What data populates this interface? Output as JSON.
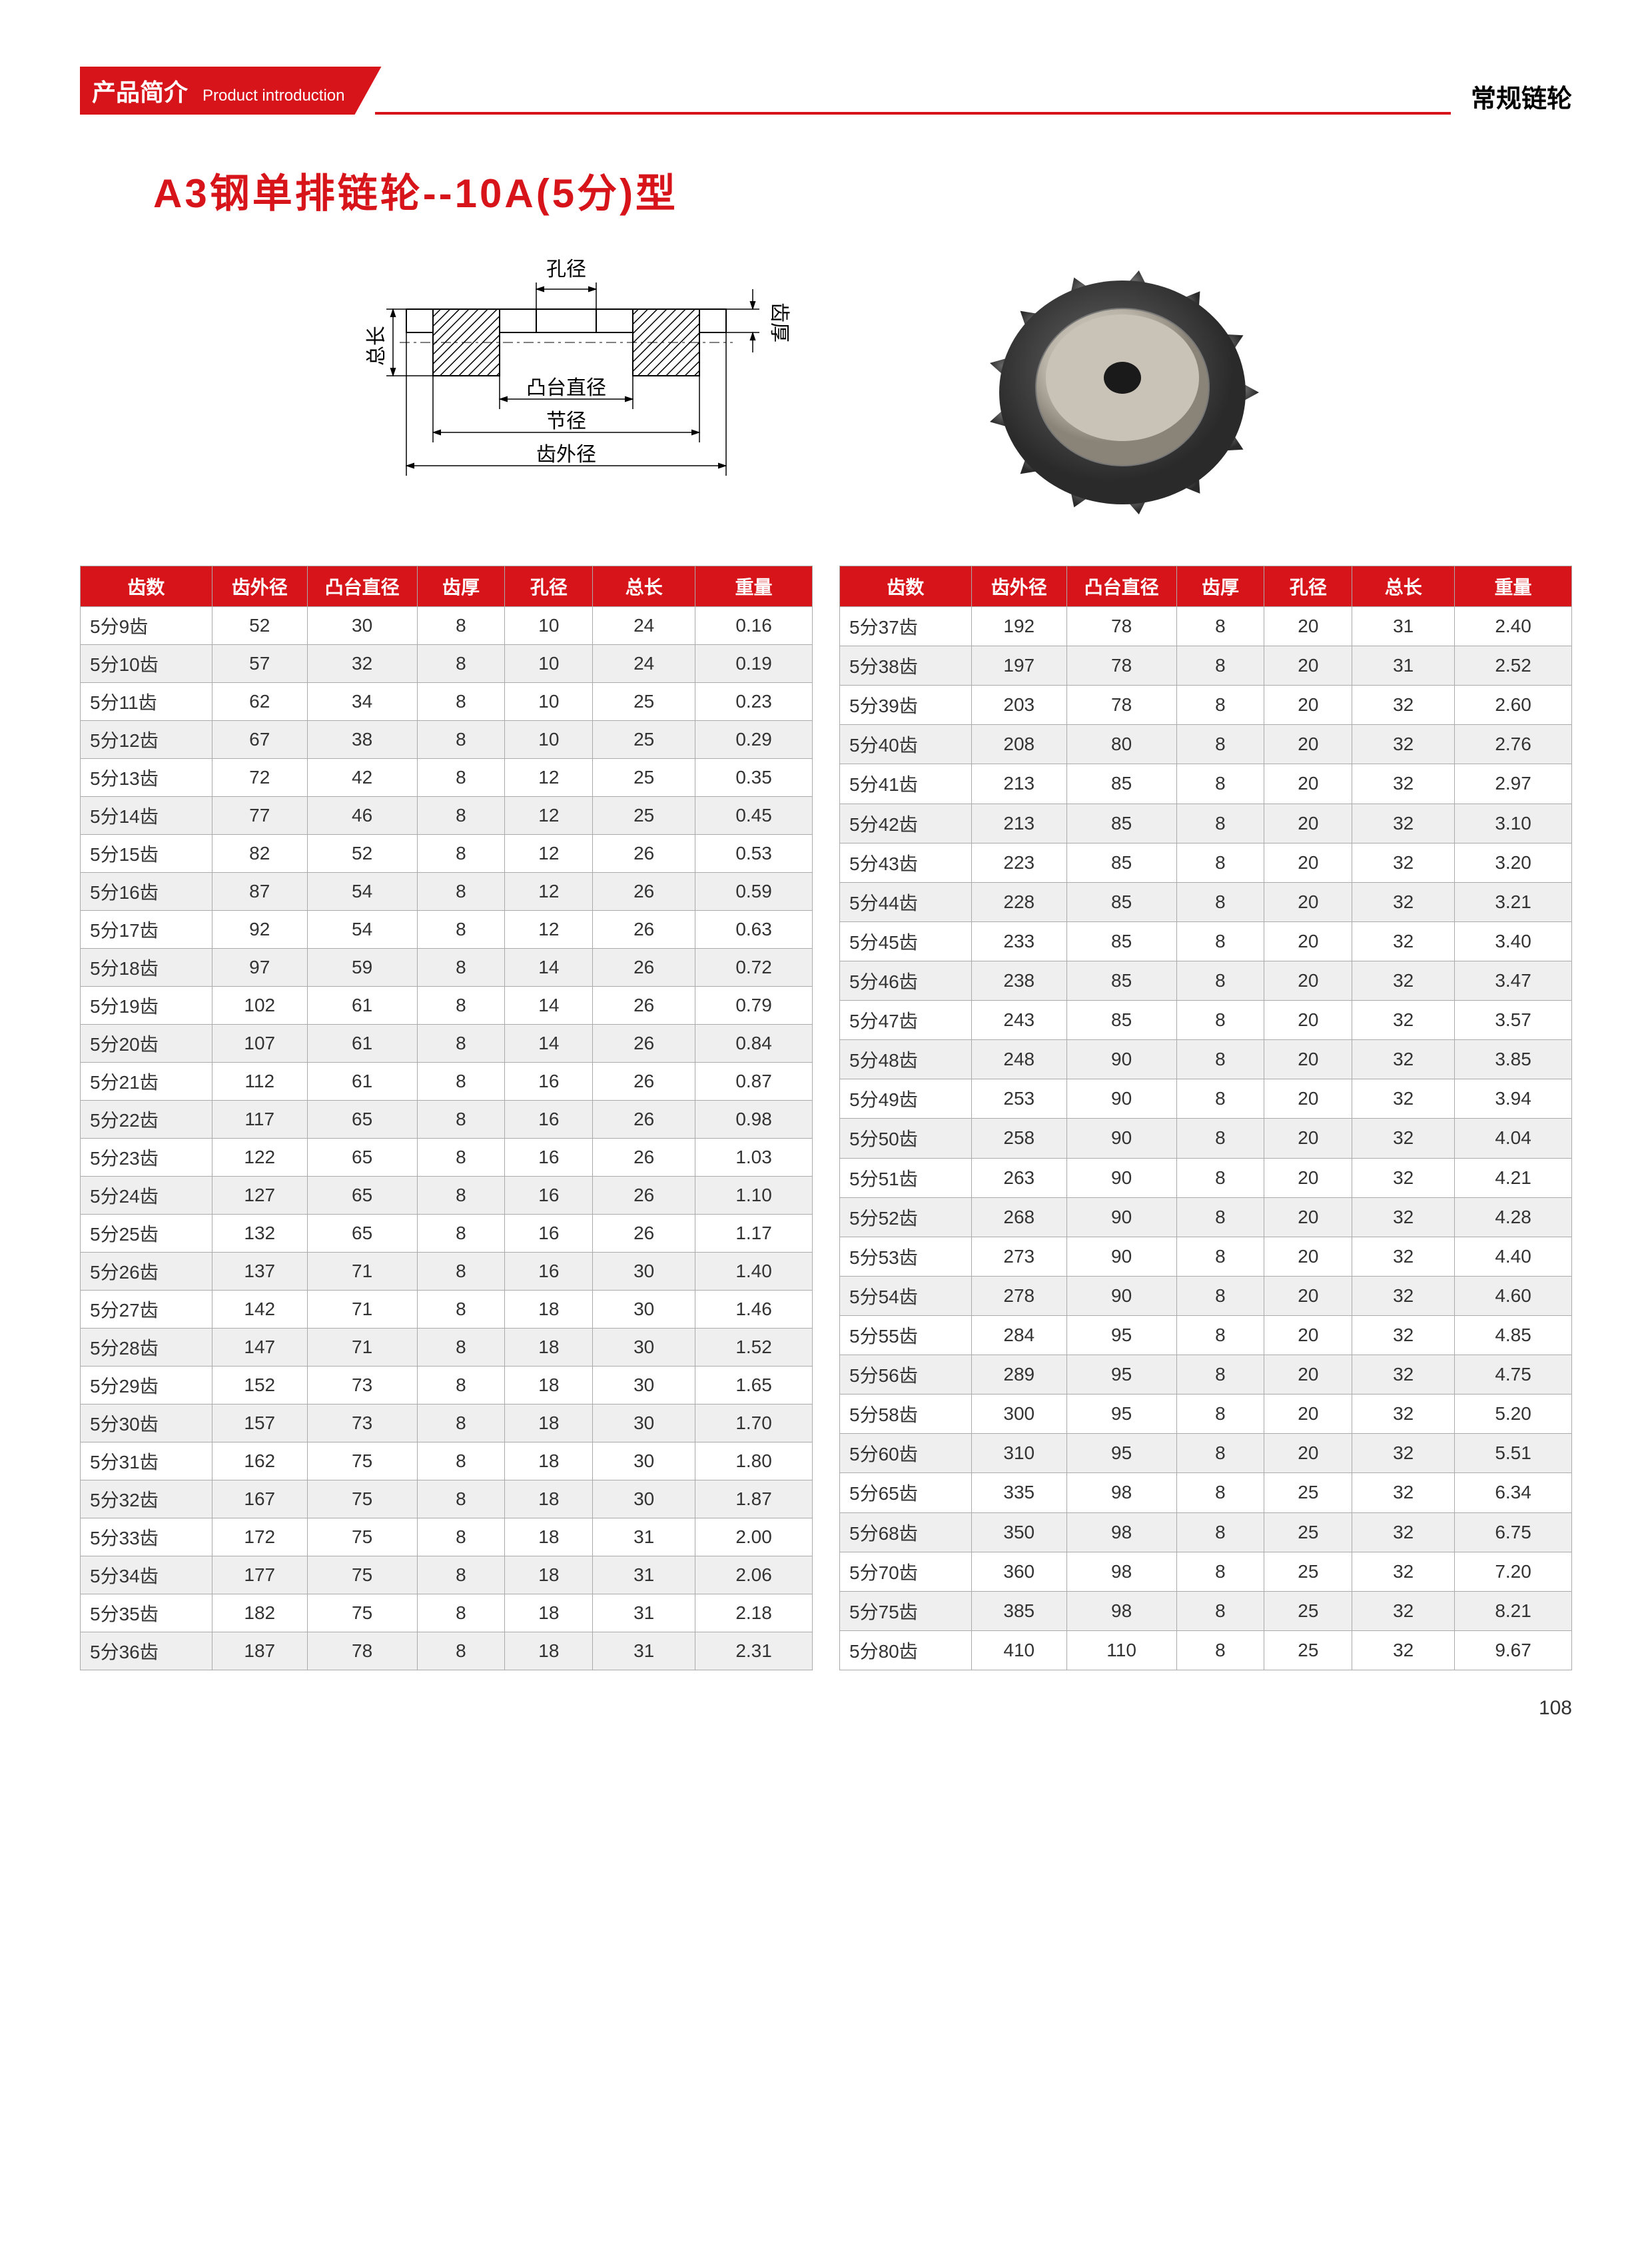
{
  "header": {
    "tab_cn": "产品简介",
    "tab_en": "Product introduction",
    "right": "常规链轮"
  },
  "title": "A3钢单排链轮--10A(5分)型",
  "diagram_labels": {
    "bore": "孔径",
    "hub": "凸台直径",
    "pitch": "节径",
    "outer": "齿外径",
    "total_len": "总长",
    "thick": "齿厚"
  },
  "columns": [
    "齿数",
    "齿外径",
    "凸台直径",
    "齿厚",
    "孔径",
    "总长",
    "重量"
  ],
  "col_widths": [
    "18%",
    "13%",
    "15%",
    "12%",
    "12%",
    "14%",
    "16%"
  ],
  "left_rows": [
    [
      "5分9齿",
      "52",
      "30",
      "8",
      "10",
      "24",
      "0.16"
    ],
    [
      "5分10齿",
      "57",
      "32",
      "8",
      "10",
      "24",
      "0.19"
    ],
    [
      "5分11齿",
      "62",
      "34",
      "8",
      "10",
      "25",
      "0.23"
    ],
    [
      "5分12齿",
      "67",
      "38",
      "8",
      "10",
      "25",
      "0.29"
    ],
    [
      "5分13齿",
      "72",
      "42",
      "8",
      "12",
      "25",
      "0.35"
    ],
    [
      "5分14齿",
      "77",
      "46",
      "8",
      "12",
      "25",
      "0.45"
    ],
    [
      "5分15齿",
      "82",
      "52",
      "8",
      "12",
      "26",
      "0.53"
    ],
    [
      "5分16齿",
      "87",
      "54",
      "8",
      "12",
      "26",
      "0.59"
    ],
    [
      "5分17齿",
      "92",
      "54",
      "8",
      "12",
      "26",
      "0.63"
    ],
    [
      "5分18齿",
      "97",
      "59",
      "8",
      "14",
      "26",
      "0.72"
    ],
    [
      "5分19齿",
      "102",
      "61",
      "8",
      "14",
      "26",
      "0.79"
    ],
    [
      "5分20齿",
      "107",
      "61",
      "8",
      "14",
      "26",
      "0.84"
    ],
    [
      "5分21齿",
      "112",
      "61",
      "8",
      "16",
      "26",
      "0.87"
    ],
    [
      "5分22齿",
      "117",
      "65",
      "8",
      "16",
      "26",
      "0.98"
    ],
    [
      "5分23齿",
      "122",
      "65",
      "8",
      "16",
      "26",
      "1.03"
    ],
    [
      "5分24齿",
      "127",
      "65",
      "8",
      "16",
      "26",
      "1.10"
    ],
    [
      "5分25齿",
      "132",
      "65",
      "8",
      "16",
      "26",
      "1.17"
    ],
    [
      "5分26齿",
      "137",
      "71",
      "8",
      "16",
      "30",
      "1.40"
    ],
    [
      "5分27齿",
      "142",
      "71",
      "8",
      "18",
      "30",
      "1.46"
    ],
    [
      "5分28齿",
      "147",
      "71",
      "8",
      "18",
      "30",
      "1.52"
    ],
    [
      "5分29齿",
      "152",
      "73",
      "8",
      "18",
      "30",
      "1.65"
    ],
    [
      "5分30齿",
      "157",
      "73",
      "8",
      "18",
      "30",
      "1.70"
    ],
    [
      "5分31齿",
      "162",
      "75",
      "8",
      "18",
      "30",
      "1.80"
    ],
    [
      "5分32齿",
      "167",
      "75",
      "8",
      "18",
      "30",
      "1.87"
    ],
    [
      "5分33齿",
      "172",
      "75",
      "8",
      "18",
      "31",
      "2.00"
    ],
    [
      "5分34齿",
      "177",
      "75",
      "8",
      "18",
      "31",
      "2.06"
    ],
    [
      "5分35齿",
      "182",
      "75",
      "8",
      "18",
      "31",
      "2.18"
    ],
    [
      "5分36齿",
      "187",
      "78",
      "8",
      "18",
      "31",
      "2.31"
    ]
  ],
  "right_rows": [
    [
      "5分37齿",
      "192",
      "78",
      "8",
      "20",
      "31",
      "2.40"
    ],
    [
      "5分38齿",
      "197",
      "78",
      "8",
      "20",
      "31",
      "2.52"
    ],
    [
      "5分39齿",
      "203",
      "78",
      "8",
      "20",
      "32",
      "2.60"
    ],
    [
      "5分40齿",
      "208",
      "80",
      "8",
      "20",
      "32",
      "2.76"
    ],
    [
      "5分41齿",
      "213",
      "85",
      "8",
      "20",
      "32",
      "2.97"
    ],
    [
      "5分42齿",
      "213",
      "85",
      "8",
      "20",
      "32",
      "3.10"
    ],
    [
      "5分43齿",
      "223",
      "85",
      "8",
      "20",
      "32",
      "3.20"
    ],
    [
      "5分44齿",
      "228",
      "85",
      "8",
      "20",
      "32",
      "3.21"
    ],
    [
      "5分45齿",
      "233",
      "85",
      "8",
      "20",
      "32",
      "3.40"
    ],
    [
      "5分46齿",
      "238",
      "85",
      "8",
      "20",
      "32",
      "3.47"
    ],
    [
      "5分47齿",
      "243",
      "85",
      "8",
      "20",
      "32",
      "3.57"
    ],
    [
      "5分48齿",
      "248",
      "90",
      "8",
      "20",
      "32",
      "3.85"
    ],
    [
      "5分49齿",
      "253",
      "90",
      "8",
      "20",
      "32",
      "3.94"
    ],
    [
      "5分50齿",
      "258",
      "90",
      "8",
      "20",
      "32",
      "4.04"
    ],
    [
      "5分51齿",
      "263",
      "90",
      "8",
      "20",
      "32",
      "4.21"
    ],
    [
      "5分52齿",
      "268",
      "90",
      "8",
      "20",
      "32",
      "4.28"
    ],
    [
      "5分53齿",
      "273",
      "90",
      "8",
      "20",
      "32",
      "4.40"
    ],
    [
      "5分54齿",
      "278",
      "90",
      "8",
      "20",
      "32",
      "4.60"
    ],
    [
      "5分55齿",
      "284",
      "95",
      "8",
      "20",
      "32",
      "4.85"
    ],
    [
      "5分56齿",
      "289",
      "95",
      "8",
      "20",
      "32",
      "4.75"
    ],
    [
      "5分58齿",
      "300",
      "95",
      "8",
      "20",
      "32",
      "5.20"
    ],
    [
      "5分60齿",
      "310",
      "95",
      "8",
      "20",
      "32",
      "5.51"
    ],
    [
      "5分65齿",
      "335",
      "98",
      "8",
      "25",
      "32",
      "6.34"
    ],
    [
      "5分68齿",
      "350",
      "98",
      "8",
      "25",
      "32",
      "6.75"
    ],
    [
      "5分70齿",
      "360",
      "98",
      "8",
      "25",
      "32",
      "7.20"
    ],
    [
      "5分75齿",
      "385",
      "98",
      "8",
      "25",
      "32",
      "8.21"
    ],
    [
      "5分80齿",
      "410",
      "110",
      "8",
      "25",
      "32",
      "9.67"
    ]
  ],
  "page_num": "108",
  "colors": {
    "brand": "#d7141a",
    "row_alt": "#efefef",
    "border": "#aaaaaa",
    "text": "#333333"
  }
}
